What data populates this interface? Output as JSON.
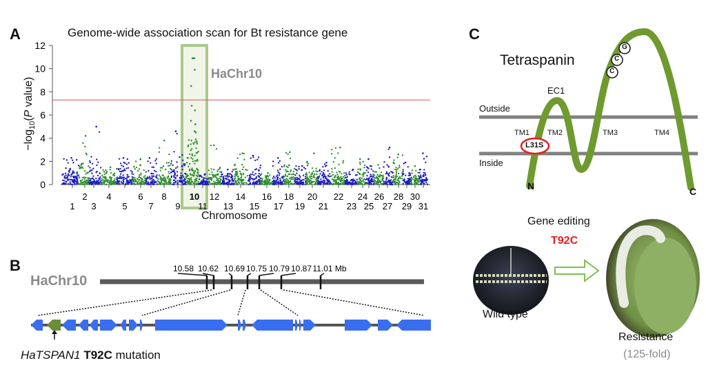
{
  "panel_a": {
    "label": "A",
    "highlight_label": "HaChr10",
    "highlight_chromosome": "10"
  },
  "chart_data": {
    "type": "scatter",
    "subtype": "manhattan",
    "title": "Genome-wide association scan for Bt resistance gene",
    "xlabel": "Chromosome",
    "ylabel_prefix": "−log",
    "ylabel_sub": "10",
    "ylabel_open": "(",
    "ylabel_italic": "P",
    "ylabel_suffix": " value)",
    "ylim": [
      0,
      12
    ],
    "yticks": [
      "0",
      "2",
      "4",
      "6",
      "8",
      "10",
      "12"
    ],
    "significance_threshold": 7.3,
    "threshold_color": "#e0524f",
    "categories": [
      "1",
      "2",
      "3",
      "4",
      "5",
      "6",
      "7",
      "8",
      "9",
      "10",
      "11",
      "12",
      "13",
      "14",
      "15",
      "16",
      "17",
      "18",
      "19",
      "20",
      "21",
      "22",
      "23",
      "24",
      "25",
      "26",
      "27",
      "28",
      "29",
      "30",
      "31"
    ],
    "series_colors": {
      "odd": "#1f1fbf",
      "even": "#2f8f2f"
    },
    "max_per_chromosome": [
      2.3,
      4.2,
      5.0,
      1.5,
      2.3,
      2.2,
      2.3,
      3.8,
      4.6,
      10.9,
      0.9,
      3.4,
      1.3,
      2.7,
      2.5,
      1.0,
      2.3,
      2.8,
      1.6,
      2.7,
      1.9,
      3.2,
      1.3,
      2.2,
      2.2,
      1.7,
      3.2,
      2.6,
      1.9,
      1.6,
      2.7
    ],
    "chr10_top_hits": [
      10.9,
      10.9,
      9.9,
      8.5,
      6.8,
      6.4,
      5.5,
      5.2,
      4.6,
      4.5,
      3.9,
      3.8
    ],
    "grid": false,
    "legend": "none"
  },
  "panel_b": {
    "label": "B",
    "chromosome": "HaChr10",
    "positions": [
      "10.58",
      "10.62",
      "10.69",
      "10.75",
      "10.79",
      "10.87",
      "11.01 Mb"
    ],
    "gene_italic": "HaTSPAN1",
    "mutation": "T92C",
    "mutation_suffix": " mutation",
    "gene_color": "#3a6ef0",
    "target_gene_color": "#6b8e3a"
  },
  "panel_c": {
    "label": "C",
    "title": "Tetraspanin",
    "outside": "Outside",
    "inside": "Inside",
    "loop": "EC1",
    "tm": [
      "TM1",
      "TM2",
      "TM3",
      "TM4"
    ],
    "residues": [
      "C",
      "C",
      "G"
    ],
    "mutation_site": "L31S",
    "n_term": "N",
    "c_term": "C",
    "protein_color": "#6f9a2f",
    "gene_editing": "Gene editing",
    "edit": "T92C",
    "wild_type": "Wild type",
    "resistance": "Resistance",
    "fold": "(125-fold)"
  }
}
